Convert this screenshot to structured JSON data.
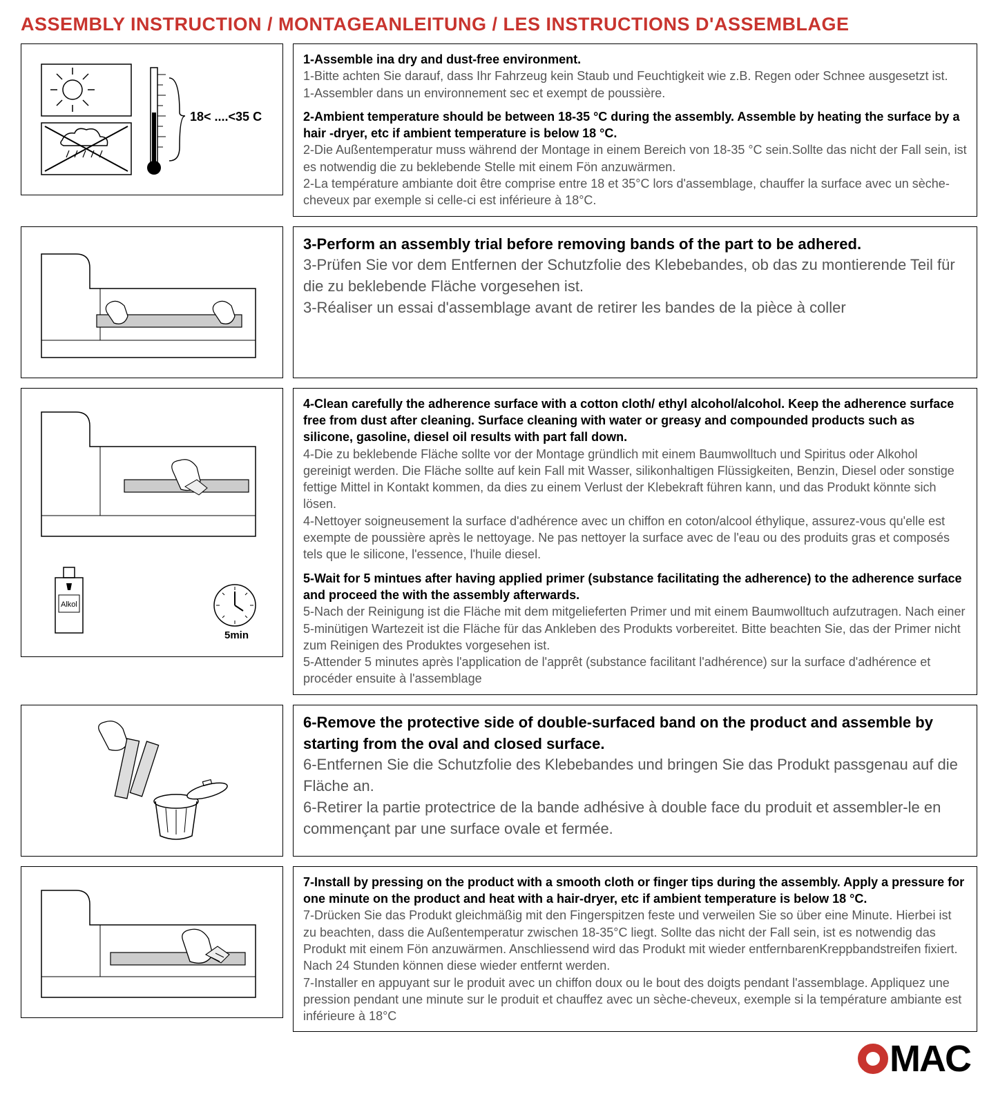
{
  "title": "ASSEMBLY INSTRUCTION / MONTAGEANLEITUNG / LES INSTRUCTIONS D'ASSEMBLAGE",
  "colors": {
    "title": "#c8342e",
    "border": "#000000",
    "bold_text": "#000000",
    "regular_text": "#555555",
    "logo_red": "#c8342e",
    "logo_black": "#000000",
    "background": "#ffffff"
  },
  "steps": [
    {
      "diagram": "temperature",
      "temp_label": "18< ....<35 C",
      "lines": [
        {
          "bold": true,
          "text": "1-Assemble ina dry and dust-free environment."
        },
        {
          "bold": false,
          "text": "1-Bitte achten Sie darauf, dass Ihr Fahrzeug kein Staub und Feuchtigkeit wie z.B. Regen oder Schnee ausgesetzt ist."
        },
        {
          "bold": false,
          "text": "1-Assembler dans un environnement sec et exempt de poussière."
        },
        {
          "bold": true,
          "gap": true,
          "text": "2-Ambient temperature should be between 18-35 °C  during the assembly. Assemble by heating the surface by a hair -dryer, etc if ambient temperature is below 18 °C."
        },
        {
          "bold": false,
          "text": "2-Die Außentemperatur muss während der Montage in einem Bereich von 18-35 °C  sein.Sollte das nicht der Fall sein, ist es notwendig die zu beklebende Stelle mit einem Fön anzuwärmen."
        },
        {
          "bold": false,
          "text": "2-La température ambiante doit être comprise entre 18 et 35°C lors d'assemblage, chauffer la surface avec un sèche-cheveux par exemple si celle-ci est inférieure à 18°C."
        }
      ]
    },
    {
      "diagram": "trial",
      "large": true,
      "lines": [
        {
          "bold": true,
          "text": "3-Perform an assembly trial before removing bands of the part to be adhered."
        },
        {
          "bold": false,
          "text": "3-Prüfen Sie vor dem Entfernen der Schutzfolie des Klebebandes, ob das zu montierende Teil für die zu beklebende Fläche vorgesehen ist."
        },
        {
          "bold": false,
          "text": "3-Réaliser un essai d'assemblage avant de retirer les bandes de la pièce à coller"
        }
      ]
    },
    {
      "diagram": "clean",
      "timer_label": "5min",
      "alcohol_label": "Alkol",
      "lines": [
        {
          "bold": true,
          "text": "4-Clean carefully the adherence surface with a cotton cloth/ ethyl alcohol/alcohol. Keep the adherence surface free from dust after cleaning. Surface cleaning with water or greasy and compounded products such as silicone, gasoline, diesel oil results with part fall down."
        },
        {
          "bold": false,
          "text": "4-Die zu beklebende Fläche sollte vor der Montage gründlich mit einem Baumwolltuch und Spiritus oder Alkohol gereinigt werden. Die Fläche sollte auf kein Fall mit Wasser, silikonhaltigen Flüssigkeiten, Benzin, Diesel oder sonstige fettige Mittel in Kontakt kommen, da dies zu einem Verlust der Klebekraft führen kann, und das Produkt könnte sich lösen."
        },
        {
          "bold": false,
          "text": "4-Nettoyer soigneusement la surface d'adhérence avec un chiffon en coton/alcool éthylique, assurez-vous qu'elle est exempte de poussière après le nettoyage. Ne pas nettoyer la surface avec de l'eau ou des produits gras et composés tels que le silicone, l'essence, l'huile diesel."
        },
        {
          "bold": true,
          "gap": true,
          "text": "5-Wait for 5 mintues after having applied primer (substance facilitating the adherence) to the adherence surface and proceed the with the assembly afterwards."
        },
        {
          "bold": false,
          "text": "5-Nach der Reinigung ist die Fläche mit dem mitgelieferten Primer und mit einem Baumwolltuch aufzutragen. Nach einer 5-minütigen Wartezeit ist die Fläche für das Ankleben des Produkts vorbereitet. Bitte beachten Sie, das der Primer nicht zum Reinigen des Produktes vorgesehen ist."
        },
        {
          "bold": false,
          "text": "5-Attender 5 minutes après l'application de l'apprêt (substance facilitant l'adhérence) sur la surface d'adhérence et procéder ensuite à l'assemblage"
        }
      ]
    },
    {
      "diagram": "remove-tape",
      "large": true,
      "lines": [
        {
          "bold": true,
          "text": "6-Remove the protective side of double-surfaced band on the product and assemble by starting from the oval and closed surface."
        },
        {
          "bold": false,
          "text": "6-Entfernen Sie die Schutzfolie des Klebebandes und bringen Sie das Produkt passgenau auf die Fläche an."
        },
        {
          "bold": false,
          "text": "6-Retirer la partie protectrice de la bande adhésive à double face du produit et assembler-le en commençant par une surface ovale et fermée."
        }
      ]
    },
    {
      "diagram": "press",
      "lines": [
        {
          "bold": true,
          "text": "7-Install by pressing on the product with a smooth cloth or finger tips during the assembly. Apply a pressure for one minute on the product and heat with a hair-dryer, etc if ambient temperature is below 18 °C."
        },
        {
          "bold": false,
          "text": "7-Drücken Sie das Produkt gleichmäßig mit den Fingerspitzen feste und verweilen Sie so über eine Minute. Hierbei ist zu beachten, dass die Außentemperatur zwischen 18-35°C liegt. Sollte das nicht der Fall sein, ist es notwendig das Produkt mit einem Fön anzuwärmen. Anschliessend wird das Produkt mit wieder entfernbarenKreppbandstreifen fixiert. Nach 24 Stunden können diese wieder entfernt werden."
        },
        {
          "bold": false,
          "text": "7-Installer en appuyant sur le produit avec un chiffon doux ou le bout des doigts pendant l'assemblage. Appliquez une pression pendant une minute sur le produit et chauffez avec un sèche-cheveux, exemple si la température ambiante est inférieure à 18°C"
        }
      ]
    }
  ],
  "logo": {
    "text_after_o": "MAC"
  }
}
